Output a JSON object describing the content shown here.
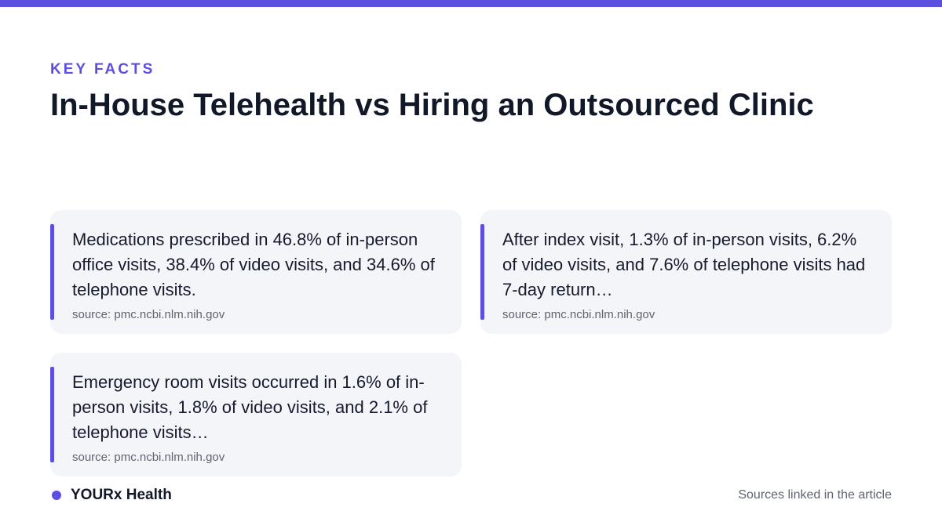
{
  "header": {
    "eyebrow": "KEY FACTS",
    "title": "In-House Telehealth vs Hiring an Outsourced Clinic"
  },
  "facts": [
    {
      "text": "Medications prescribed in 46.8% of in-person office visits, 38.4% of video visits, and 34.6% of telephone visits.",
      "source": "source: pmc.ncbi.nlm.nih.gov"
    },
    {
      "text": "After index visit, 1.3% of in-person visits, 6.2% of video visits, and 7.6% of telephone visits had 7-day return…",
      "source": "source: pmc.ncbi.nlm.nih.gov"
    },
    {
      "text": "Emergency room visits occurred in 1.6% of in-person visits, 1.8% of video visits, and 2.1% of telephone visits…",
      "source": "source: pmc.ncbi.nlm.nih.gov"
    }
  ],
  "footer": {
    "brand": "YOURx Health",
    "note": "Sources linked in the article"
  },
  "colors": {
    "accent": "#5b4ee0",
    "card_background": "#f4f5f9",
    "text": "#111827",
    "muted": "#5f6472"
  }
}
